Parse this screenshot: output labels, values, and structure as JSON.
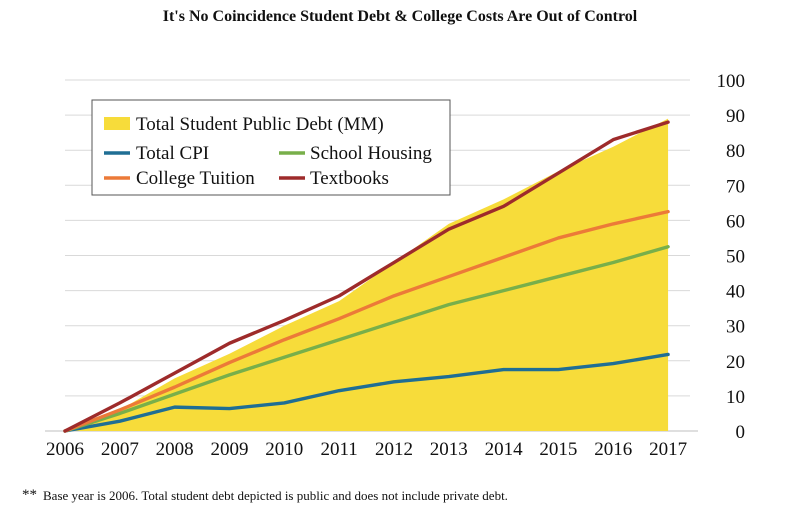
{
  "title": "It's No Coincidence Student Debt & College Costs Are Out of Control",
  "footnote": {
    "stars": "**",
    "text": "Base year is 2006.  Total student debt depicted is public and does not include private debt."
  },
  "chart_data": {
    "type": "area+line",
    "title": "It's No Coincidence Student Debt & College Costs Are Out of Control",
    "xlabel": "",
    "ylabel": "",
    "x": [
      2006,
      2007,
      2008,
      2009,
      2010,
      2011,
      2012,
      2013,
      2014,
      2015,
      2016,
      2017
    ],
    "xlim": [
      2006,
      2017.4
    ],
    "ylim": [
      0,
      100
    ],
    "y_ticks": [
      0,
      10,
      20,
      30,
      40,
      50,
      60,
      70,
      80,
      90,
      100
    ],
    "y_axis_side": "right",
    "grid": true,
    "legend_position": "top-left",
    "area": {
      "name": "Total Student Public Debt (MM)",
      "color": "#F7DC3A",
      "values": [
        0,
        6,
        15,
        22,
        30,
        37,
        48,
        59,
        66,
        74,
        81,
        89
      ]
    },
    "series": [
      {
        "name": "Total CPI",
        "color": "#1F6E94",
        "values": [
          0,
          2.8,
          6.8,
          6.4,
          8.0,
          11.5,
          14.0,
          15.5,
          17.5,
          17.5,
          19.2,
          21.8
        ]
      },
      {
        "name": "School Housing",
        "color": "#78AF4A",
        "values": [
          0,
          5,
          10.5,
          16,
          21,
          26,
          31,
          36,
          40,
          44,
          48,
          52.5
        ]
      },
      {
        "name": "College Tuition",
        "color": "#EC7A38",
        "values": [
          0,
          6,
          12.5,
          19.5,
          26,
          32,
          38.5,
          44,
          49.5,
          55,
          59,
          62.5
        ]
      },
      {
        "name": "Textbooks",
        "color": "#9E2B2B",
        "values": [
          0,
          8,
          16.5,
          25,
          31.5,
          38.5,
          48,
          57.5,
          64,
          73.5,
          83,
          88
        ]
      }
    ],
    "legend": [
      "Total Student Public Debt (MM)",
      "Total CPI",
      "School Housing",
      "College Tuition",
      "Textbooks"
    ]
  }
}
